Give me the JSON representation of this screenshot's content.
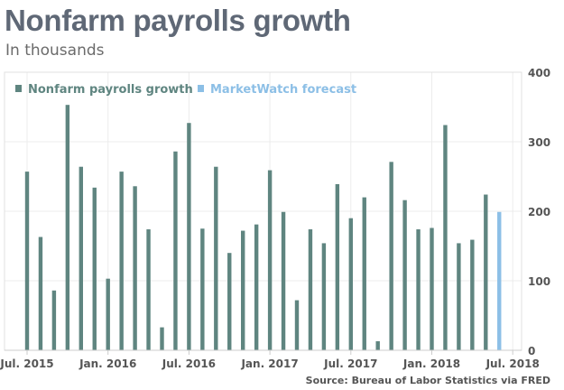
{
  "chart_data": {
    "type": "bar",
    "title": "Nonfarm payrolls growth",
    "subtitle": "In thousands",
    "source": "Source: Bureau of Labor Statistics via FRED",
    "ylim": [
      0,
      400
    ],
    "yticks": [
      0,
      100,
      200,
      300,
      400
    ],
    "y_axis_position": "right",
    "grid": true,
    "legend_placement": "top-left",
    "xtick_labels": [
      "Jul. 2015",
      "Jan. 2016",
      "Jul. 2016",
      "Jan. 2017",
      "Jul. 2017",
      "Jan. 2018",
      "Jul. 2018"
    ],
    "xtick_index": [
      0,
      6,
      12,
      18,
      24,
      30,
      36
    ],
    "categories": [
      "Jul 2015",
      "Aug 2015",
      "Sep 2015",
      "Oct 2015",
      "Nov 2015",
      "Dec 2015",
      "Jan 2016",
      "Feb 2016",
      "Mar 2016",
      "Apr 2016",
      "May 2016",
      "Jun 2016",
      "Jul 2016",
      "Aug 2016",
      "Sep 2016",
      "Oct 2016",
      "Nov 2016",
      "Dec 2016",
      "Jan 2017",
      "Feb 2017",
      "Mar 2017",
      "Apr 2017",
      "May 2017",
      "Jun 2017",
      "Jul 2017",
      "Aug 2017",
      "Sep 2017",
      "Oct 2017",
      "Nov 2017",
      "Dec 2017",
      "Jan 2018",
      "Feb 2018",
      "Mar 2018",
      "Apr 2018",
      "May 2018",
      "Jun 2018"
    ],
    "series": [
      {
        "name": "Nonfarm payrolls growth",
        "color": "#5f8580",
        "values": [
          257,
          163,
          86,
          353,
          264,
          234,
          103,
          257,
          236,
          174,
          33,
          286,
          327,
          175,
          264,
          140,
          172,
          181,
          259,
          199,
          72,
          174,
          154,
          239,
          190,
          220,
          13,
          271,
          216,
          174,
          176,
          324,
          154,
          159,
          224,
          null
        ]
      },
      {
        "name": "MarketWatch forecast",
        "color": "#8cbfe6",
        "values": [
          null,
          null,
          null,
          null,
          null,
          null,
          null,
          null,
          null,
          null,
          null,
          null,
          null,
          null,
          null,
          null,
          null,
          null,
          null,
          null,
          null,
          null,
          null,
          null,
          null,
          null,
          null,
          null,
          null,
          null,
          null,
          null,
          null,
          null,
          null,
          199
        ]
      }
    ]
  }
}
